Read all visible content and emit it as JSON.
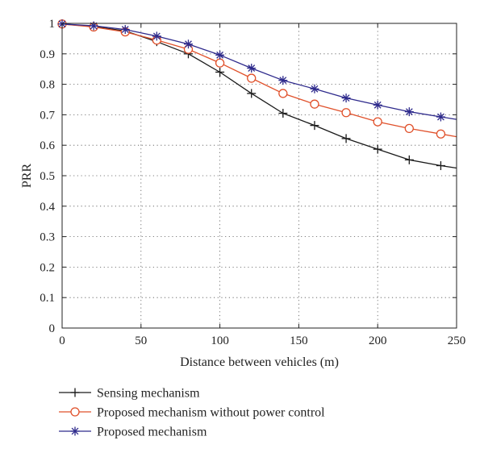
{
  "chart_data": {
    "type": "line",
    "title": "",
    "xlabel": "Distance between vehicles (m)",
    "ylabel": "PRR",
    "xlim": [
      0,
      250
    ],
    "ylim": [
      0,
      1
    ],
    "xticks": [
      0,
      50,
      100,
      150,
      200,
      250
    ],
    "yticks": [
      0,
      0.1,
      0.2,
      0.3,
      0.4,
      0.5,
      0.6,
      0.7,
      0.8,
      0.9,
      1
    ],
    "grid": true,
    "legend_position": "below",
    "series": [
      {
        "name": "Sensing mechanism",
        "marker": "plus",
        "color": "#1a1a1a",
        "x": [
          0,
          20,
          40,
          60,
          80,
          100,
          120,
          140,
          160,
          180,
          200,
          220,
          240,
          250
        ],
        "y": [
          0.998,
          0.99,
          0.975,
          0.94,
          0.9,
          0.84,
          0.77,
          0.705,
          0.665,
          0.622,
          0.587,
          0.552,
          0.533,
          0.525
        ],
        "marker_x": [
          0,
          20,
          40,
          60,
          80,
          100,
          120,
          140,
          160,
          180,
          200,
          220,
          240
        ]
      },
      {
        "name": "Proposed mechanism without power control",
        "marker": "circle",
        "color": "#e0502a",
        "x": [
          0,
          20,
          40,
          60,
          80,
          100,
          120,
          140,
          160,
          180,
          200,
          220,
          240,
          250
        ],
        "y": [
          0.998,
          0.988,
          0.972,
          0.945,
          0.915,
          0.87,
          0.82,
          0.77,
          0.735,
          0.707,
          0.677,
          0.655,
          0.637,
          0.628
        ],
        "marker_x": [
          0,
          20,
          40,
          60,
          80,
          100,
          120,
          140,
          160,
          180,
          200,
          220,
          240
        ]
      },
      {
        "name": "Proposed mechanism",
        "marker": "star",
        "color": "#2e2a8c",
        "x": [
          0,
          20,
          40,
          60,
          80,
          100,
          120,
          140,
          160,
          180,
          200,
          220,
          240,
          250
        ],
        "y": [
          0.998,
          0.992,
          0.98,
          0.958,
          0.932,
          0.896,
          0.853,
          0.813,
          0.785,
          0.755,
          0.732,
          0.71,
          0.693,
          0.685
        ],
        "marker_x": [
          0,
          20,
          40,
          60,
          80,
          100,
          120,
          140,
          160,
          180,
          200,
          220,
          240
        ]
      }
    ]
  }
}
